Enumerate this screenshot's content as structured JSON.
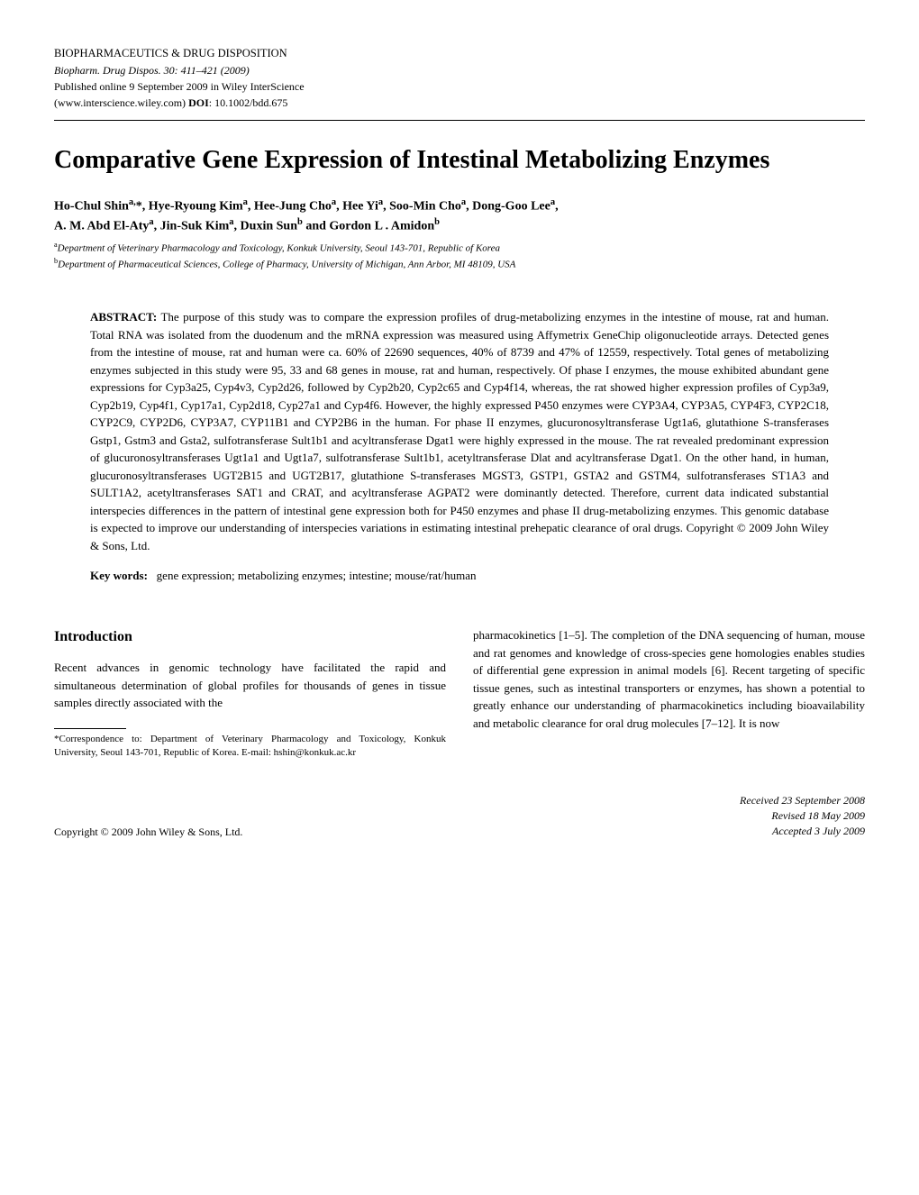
{
  "header": {
    "journal_name": "BIOPHARMACEUTICS & DRUG DISPOSITION",
    "journal_line": "Biopharm. Drug Dispos. 30: 411–421 (2009)",
    "published_line": "Published online 9 September 2009 in Wiley InterScience",
    "doi_line": "(www.interscience.wiley.com) DOI: 10.1002/bdd.675"
  },
  "title": "Comparative Gene Expression of Intestinal Metabolizing Enzymes",
  "authors_line1": "Ho-Chul Shinᵃ'*, Hye-Ryoung Kimᵃ, Hee-Jung Choᵃ, Hee Yiᵃ, Soo-Min Choᵃ, Dong-Goo Leeᵃ,",
  "authors_line2": "A. M. Abd El-Atyᵃ, Jin-Suk Kimᵃ, Duxin Sunᵇ and Gordon L . Amidonᵇ",
  "affiliations": {
    "a": "Department of Veterinary Pharmacology and Toxicology, Konkuk University, Seoul 143-701, Republic of Korea",
    "b": "Department of Pharmaceutical Sciences, College of Pharmacy, University of Michigan, Ann Arbor, MI 48109, USA"
  },
  "abstract_label": "ABSTRACT:",
  "abstract_text": "The purpose of this study was to compare the expression profiles of drug-metabolizing enzymes in the intestine of mouse, rat and human. Total RNA was isolated from the duodenum and the mRNA expression was measured using Affymetrix GeneChip oligonucleotide arrays. Detected genes from the intestine of mouse, rat and human were ca. 60% of 22690 sequences, 40% of 8739 and 47% of 12559, respectively. Total genes of metabolizing enzymes subjected in this study were 95, 33 and 68 genes in mouse, rat and human, respectively. Of phase I enzymes, the mouse exhibited abundant gene expressions for Cyp3a25, Cyp4v3, Cyp2d26, followed by Cyp2b20, Cyp2c65 and Cyp4f14, whereas, the rat showed higher expression profiles of Cyp3a9, Cyp2b19, Cyp4f1, Cyp17a1, Cyp2d18, Cyp27a1 and Cyp4f6. However, the highly expressed P450 enzymes were CYP3A4, CYP3A5, CYP4F3, CYP2C18, CYP2C9, CYP2D6, CYP3A7, CYP11B1 and CYP2B6 in the human. For phase II enzymes, glucuronosyltransferase Ugt1a6, glutathione S-transferases Gstp1, Gstm3 and Gsta2, sulfotransferase Sult1b1 and acyltransferase Dgat1 were highly expressed in the mouse. The rat revealed predominant expression of glucuronosyltransferases Ugt1a1 and Ugt1a7, sulfotransferase Sult1b1, acetyltransferase Dlat and acyltransferase Dgat1. On the other hand, in human, glucuronosyltransferases UGT2B15 and UGT2B17, glutathione S-transferases MGST3, GSTP1, GSTA2 and GSTM4, sulfotransferases ST1A3 and SULT1A2, acetyltransferases SAT1 and CRAT, and acyltransferase AGPAT2 were dominantly detected. Therefore, current data indicated substantial interspecies differences in the pattern of intestinal gene expression both for P450 enzymes and phase II drug-metabolizing enzymes. This genomic database is expected to improve our understanding of interspecies variations in estimating intestinal prehepatic clearance of oral drugs. Copyright © 2009 John Wiley & Sons, Ltd.",
  "keywords_label": "Key words:",
  "keywords_text": "gene expression; metabolizing enzymes; intestine; mouse/rat/human",
  "intro_heading": "Introduction",
  "intro_left": "Recent advances in genomic technology have facilitated the rapid and simultaneous determination of global profiles for thousands of genes in tissue samples directly associated with the",
  "intro_right": "pharmacokinetics [1–5]. The completion of the DNA sequencing of human, mouse and rat genomes and knowledge of cross-species gene homologies enables studies of differential gene expression in animal models [6]. Recent targeting of specific tissue genes, such as intestinal transporters or enzymes, has shown a potential to greatly enhance our understanding of pharmacokinetics including bioavailability and metabolic clearance for oral drug molecules [7–12]. It is now",
  "correspondence": "*Correspondence to: Department of Veterinary Pharmacology and Toxicology, Konkuk University, Seoul 143-701, Republic of Korea. E-mail: hshin@konkuk.ac.kr",
  "footer": {
    "left": "Copyright © 2009 John Wiley & Sons, Ltd.",
    "received": "Received 23 September 2008",
    "revised": "Revised 18 May 2009",
    "accepted": "Accepted 3 July 2009"
  }
}
